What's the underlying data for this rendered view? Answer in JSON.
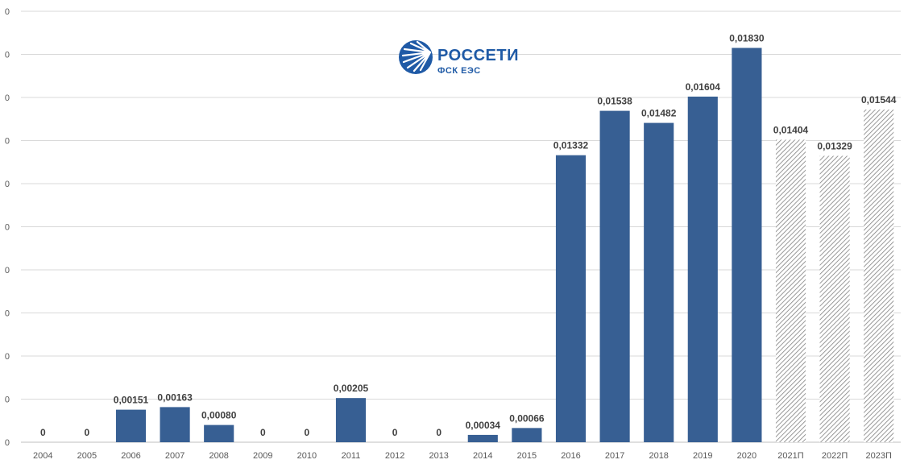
{
  "logo": {
    "name": "РОССЕТИ",
    "subtitle": "ФСК ЕЭС",
    "color": "#1f5aa6"
  },
  "chart_data": {
    "type": "bar",
    "title": "",
    "xlabel": "",
    "ylabel": "",
    "ylim": [
      0,
      0.02
    ],
    "y_tick_labels": [
      "0",
      "0",
      "0",
      "0",
      "0",
      "0",
      "0",
      "0",
      "0",
      "0",
      "0"
    ],
    "grid": true,
    "categories": [
      "2004",
      "2005",
      "2006",
      "2007",
      "2008",
      "2009",
      "2010",
      "2011",
      "2012",
      "2013",
      "2014",
      "2015",
      "2016",
      "2017",
      "2018",
      "2019",
      "2020",
      "2021П",
      "2022П",
      "2023П"
    ],
    "values": [
      0,
      0,
      0.00151,
      0.00163,
      0.0008,
      0,
      0,
      0.00205,
      0,
      0,
      0.00034,
      0.00066,
      0.01332,
      0.01538,
      0.01482,
      0.01604,
      0.0183,
      0.01404,
      0.01329,
      0.01544
    ],
    "value_labels": [
      "0",
      "0",
      "0,00151",
      "0,00163",
      "0,00080",
      "0",
      "0",
      "0,00205",
      "0",
      "0",
      "0,00034",
      "0,00066",
      "0,01332",
      "0,01538",
      "0,01482",
      "0,01604",
      "0,01830",
      "0,01404",
      "0,01329",
      "0,01544"
    ],
    "forecast": [
      false,
      false,
      false,
      false,
      false,
      false,
      false,
      false,
      false,
      false,
      false,
      false,
      false,
      false,
      false,
      false,
      false,
      true,
      true,
      true
    ],
    "colors": {
      "bar": "#375f93",
      "forecast_hatch": "#7f7f7f",
      "grid": "#d9d9d9"
    }
  }
}
